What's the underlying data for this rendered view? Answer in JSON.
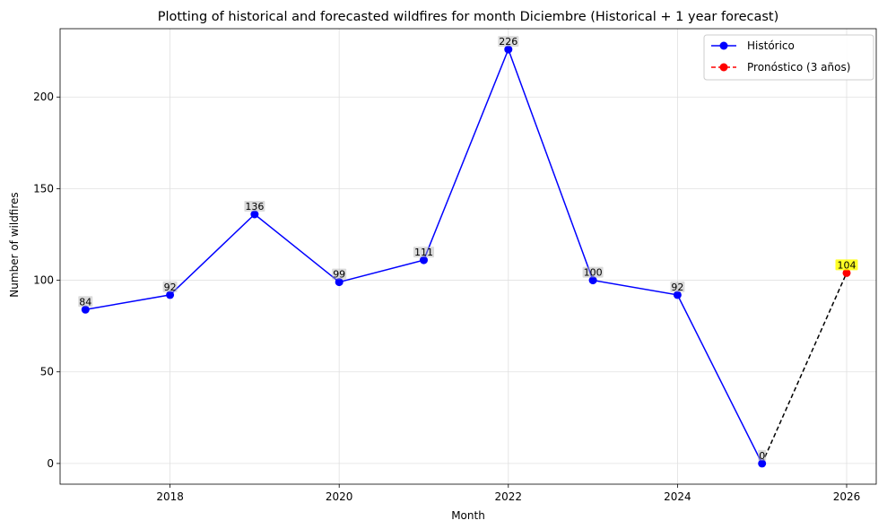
{
  "chart_data": {
    "type": "line",
    "title": "Plotting of historical and forecasted wildfires for month Diciembre (Historical + 1 year forecast)",
    "xlabel": "Month",
    "ylabel": "Number of wildfires",
    "xlim": [
      2016.7,
      2026.35
    ],
    "ylim": [
      -11.3,
      237.3
    ],
    "x_ticks": [
      2018,
      2020,
      2022,
      2024,
      2026
    ],
    "y_ticks": [
      0,
      50,
      100,
      150,
      200
    ],
    "grid": true,
    "legend_position": "top-right",
    "series": [
      {
        "name": "Histórico",
        "style": "solid",
        "marker": "circle",
        "color": "#0000ff",
        "x": [
          2017,
          2018,
          2019,
          2020,
          2021,
          2022,
          2023,
          2024,
          2025
        ],
        "y": [
          84,
          92,
          136,
          99,
          111,
          226,
          100,
          92,
          0
        ],
        "labels": [
          "84",
          "92",
          "136",
          "99",
          "111",
          "226",
          "100",
          "92",
          "0"
        ]
      },
      {
        "name": "Pronóstico (3 años)",
        "style": "dashed",
        "marker": "circle",
        "color": "#ff0000",
        "x": [
          2026
        ],
        "y": [
          104
        ],
        "labels": [
          "104"
        ],
        "label_highlight": "#ffff00"
      }
    ],
    "connector": {
      "style": "dashed",
      "color": "#000000",
      "from": [
        2025,
        0
      ],
      "to": [
        2026,
        104
      ]
    }
  }
}
